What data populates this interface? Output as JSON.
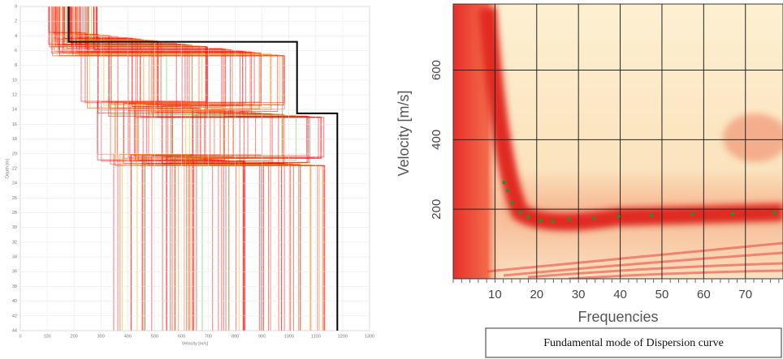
{
  "chart_data": [
    {
      "type": "step",
      "xlabel": "Velocity [m/s]",
      "ylabel": "Depth [m]",
      "series": [
        {
          "color": "#000000",
          "x": [
            180,
            180,
            1030,
            1030,
            1180,
            1180
          ],
          "values": [
            0,
            4.8,
            4.8,
            14.5,
            14.5,
            44
          ]
        }
      ],
      "xlim": [
        0,
        1300
      ],
      "xticks": [
        0,
        100,
        200,
        300,
        400,
        500,
        600,
        700,
        800,
        900,
        1000,
        1100,
        1200,
        1300
      ],
      "ylim": [
        0,
        44
      ],
      "y_inverted": true,
      "yticks": [
        0,
        2,
        4,
        6,
        8,
        10,
        12,
        14,
        16,
        18,
        20,
        22,
        24,
        26,
        28,
        30,
        32,
        34,
        36,
        38,
        40,
        42,
        44
      ],
      "grid": true
    },
    {
      "type": "scatter",
      "xlabel": "Frequencies",
      "ylabel": "Velocity [m/s]",
      "caption": "Fundamental mode of Dispersion curve",
      "series": [
        {
          "color": "#2e8b2e",
          "x": [
            12.2,
            13.1,
            14.1,
            16.1,
            18,
            21,
            23.9,
            27.8,
            33.7,
            39.6,
            47.5,
            57.3,
            67,
            76.9
          ],
          "values": [
            277,
            253,
            218,
            190,
            177,
            167,
            165,
            170,
            174,
            179,
            181,
            184,
            186,
            188
          ]
        }
      ],
      "xlim": [
        0,
        79
      ],
      "xticks": [
        10,
        20,
        30,
        40,
        50,
        60,
        70
      ],
      "ylim": [
        0,
        790
      ],
      "yticks": [
        200,
        400,
        600
      ],
      "grid": true
    }
  ]
}
